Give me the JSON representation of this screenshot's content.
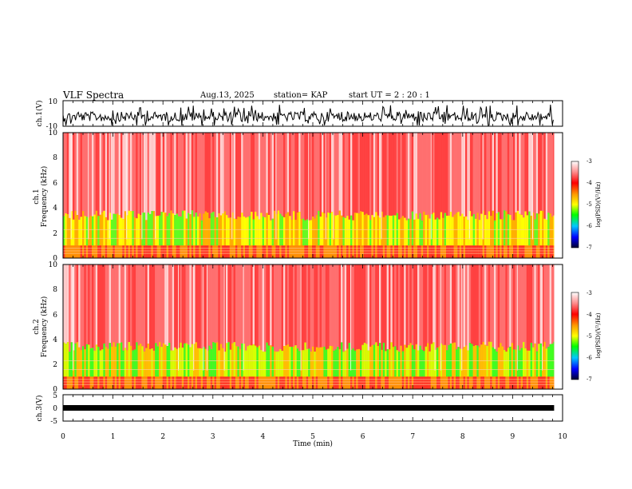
{
  "header": {
    "title": "VLF Spectra",
    "date": "Aug.13, 2025",
    "station": "station= KAP",
    "start": "start  UT  =   2  : 20 : 1"
  },
  "chart_data": [
    {
      "type": "line",
      "name": "ch1-waveform",
      "ylabel": "ch.1(V)",
      "ylim": [
        -10,
        10
      ],
      "yticks": [
        "10",
        "-10"
      ],
      "xlim": [
        0,
        10
      ],
      "color": "#000000"
    },
    {
      "type": "heatmap",
      "name": "ch1-spectrogram",
      "ylabel_line1": "ch.1",
      "ylabel_line2": "Frequency  (kHz)",
      "ylim": [
        0,
        10
      ],
      "yticks": [
        "0",
        "2",
        "4",
        "6",
        "8",
        "10"
      ],
      "xlim": [
        0,
        9.83
      ],
      "colorbar": {
        "label": "log(PSD)(V²/Hz)",
        "ticks": [
          "-3",
          "-4",
          "-5",
          "-6",
          "-7"
        ],
        "range": [
          -7,
          -3
        ]
      }
    },
    {
      "type": "heatmap",
      "name": "ch2-spectrogram",
      "ylabel_line1": "ch.2",
      "ylabel_line2": "Frequency  (kHz)",
      "ylim": [
        0,
        10
      ],
      "yticks": [
        "0",
        "2",
        "4",
        "6",
        "8",
        "10"
      ],
      "xlim": [
        0,
        9.83
      ],
      "colorbar": {
        "label": "log(PSD)(V²/Hz)",
        "ticks": [
          "-3",
          "-4",
          "-5",
          "-6",
          "-7"
        ],
        "range": [
          -7,
          -3
        ]
      }
    },
    {
      "type": "line",
      "name": "ch3-waveform",
      "ylabel": "ch.3(V)",
      "ylim": [
        -5,
        5
      ],
      "yticks": [
        "5",
        "0",
        "-5"
      ],
      "xlim": [
        0,
        10
      ],
      "color": "#000000"
    }
  ],
  "xaxis": {
    "label": "Time  (min)",
    "ticks": [
      "0",
      "1",
      "2",
      "3",
      "4",
      "5",
      "6",
      "7",
      "8",
      "9",
      "10"
    ],
    "range": [
      0,
      10
    ]
  },
  "colormap": [
    "#ffffff",
    "#ff8080",
    "#ff0000",
    "#ffa000",
    "#ffff00",
    "#00ff00",
    "#00c0ff",
    "#0000ff",
    "#000040"
  ]
}
